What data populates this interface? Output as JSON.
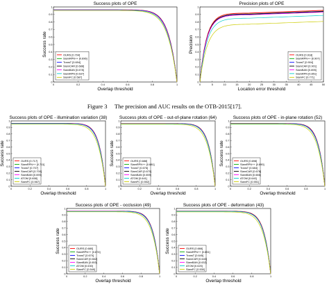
{
  "caption": "Figure 3     The precision and AUC results on the OTB-2015[17].",
  "chart_data": [
    {
      "type": "line",
      "title": "Success plots of OPE",
      "xlabel": "Overlap threshold",
      "ylabel": "Success rate",
      "xlim": [
        0,
        1
      ],
      "ylim": [
        0,
        1
      ],
      "legend_position": "bottom-left",
      "series": [
        {
          "name": "OURS [0.704]",
          "color": "#ff0000",
          "dash": "solid",
          "value": 0.704
        },
        {
          "name": "SiamRPN++ [0.696]",
          "color": "#00aa00",
          "dash": "solid",
          "value": 0.696
        },
        {
          "name": "TransT [0.694]",
          "color": "#0000ff",
          "dash": "solid",
          "value": 0.694
        },
        {
          "name": "SiamCAR [0.688]",
          "color": "#000000",
          "dash": "solid",
          "value": 0.688
        },
        {
          "name": "SiamBAN [0.678]",
          "color": "#ff00ff",
          "dash": "solid",
          "value": 0.678
        },
        {
          "name": "SiamRPN [0.637]",
          "color": "#00cccc",
          "dash": "solid",
          "value": 0.637
        },
        {
          "name": "SiamFC [0.587]",
          "color": "#cccc00",
          "dash": "solid",
          "value": 0.587
        }
      ]
    },
    {
      "type": "line",
      "title": "Precision plots of OPE",
      "xlabel": "Location error threshold",
      "ylabel": "Precision",
      "xlim": [
        0,
        50
      ],
      "ylim": [
        0,
        1
      ],
      "legend_position": "bottom-right",
      "series": [
        {
          "name": "OURS [0.918]",
          "color": "#ff0000",
          "dash": "solid",
          "value": 0.918
        },
        {
          "name": "SiamRPN++ [0.907]",
          "color": "#00aa00",
          "dash": "solid",
          "value": 0.907
        },
        {
          "name": "TransT [0.904]",
          "color": "#0000ff",
          "dash": "solid",
          "value": 0.904
        },
        {
          "name": "SiamCAR [0.901]",
          "color": "#000000",
          "dash": "solid",
          "value": 0.901
        },
        {
          "name": "SiamBAN [0.895]",
          "color": "#ff00ff",
          "dash": "solid",
          "value": 0.895
        },
        {
          "name": "SiamRPN [0.851]",
          "color": "#00cccc",
          "dash": "solid",
          "value": 0.851
        },
        {
          "name": "SiamFC [0.771]",
          "color": "#cccc00",
          "dash": "solid",
          "value": 0.771
        }
      ]
    },
    {
      "type": "line",
      "title": "Success plots of OPE - illumination variation (38)",
      "xlabel": "Overlap threshold",
      "ylabel": "Success rate",
      "xlim": [
        0,
        1
      ],
      "ylim": [
        0,
        1
      ],
      "legend_position": "bottom-left",
      "series": [
        {
          "name": "OURS [0.717]",
          "color": "#ff0000",
          "dash": "solid",
          "value": 0.717
        },
        {
          "name": "SiamRPN++ [0.711]",
          "color": "#00aa00",
          "dash": "solid",
          "value": 0.711
        },
        {
          "name": "TransT [0.707]",
          "color": "#0000ff",
          "dash": "solid",
          "value": 0.707
        },
        {
          "name": "SiamCAR [0.700]",
          "color": "#000000",
          "dash": "solid",
          "value": 0.7
        },
        {
          "name": "SiamBAN [0.690]",
          "color": "#ff00ff",
          "dash": "solid",
          "value": 0.69
        },
        {
          "name": "ATOM [0.658]",
          "color": "#00cccc",
          "dash": "solid",
          "value": 0.658
        },
        {
          "name": "SiamFC [0.567]",
          "color": "#cccc00",
          "dash": "solid",
          "value": 0.567
        }
      ]
    },
    {
      "type": "line",
      "title": "Success plots of OPE - out-of-plane rotation (64)",
      "xlabel": "Overlap threshold",
      "ylabel": "Success rate",
      "xlim": [
        0,
        1
      ],
      "ylim": [
        0,
        1
      ],
      "legend_position": "bottom-left",
      "series": [
        {
          "name": "OURS [0.688]",
          "color": "#ff0000",
          "dash": "solid",
          "value": 0.688
        },
        {
          "name": "SiamRPN++ [0.681]",
          "color": "#00aa00",
          "dash": "solid",
          "value": 0.681
        },
        {
          "name": "TransT [0.676]",
          "color": "#0000ff",
          "dash": "solid",
          "value": 0.676
        },
        {
          "name": "SiamCAR [0.670]",
          "color": "#000000",
          "dash": "solid",
          "value": 0.67
        },
        {
          "name": "SiamBAN [0.659]",
          "color": "#ff00ff",
          "dash": "solid",
          "value": 0.659
        },
        {
          "name": "ATOM [0.641]",
          "color": "#00cccc",
          "dash": "solid",
          "value": 0.641
        },
        {
          "name": "SiamFC [0.552]",
          "color": "#cccc00",
          "dash": "solid",
          "value": 0.552
        }
      ]
    },
    {
      "type": "line",
      "title": "Success plots of OPE - in-plane rotation (52)",
      "xlabel": "Overlap threshold",
      "ylabel": "Success rate",
      "xlim": [
        0,
        1
      ],
      "ylim": [
        0,
        1
      ],
      "legend_position": "bottom-left",
      "series": [
        {
          "name": "OURS [0.698]",
          "color": "#ff0000",
          "dash": "solid",
          "value": 0.698
        },
        {
          "name": "SiamRPN++ [0.690]",
          "color": "#00aa00",
          "dash": "solid",
          "value": 0.69
        },
        {
          "name": "TransT [0.684]",
          "color": "#0000ff",
          "dash": "solid",
          "value": 0.684
        },
        {
          "name": "SiamCAR [0.678]",
          "color": "#000000",
          "dash": "solid",
          "value": 0.678
        },
        {
          "name": "SiamBAN [0.666]",
          "color": "#ff00ff",
          "dash": "solid",
          "value": 0.666
        },
        {
          "name": "ATOM [0.640]",
          "color": "#00cccc",
          "dash": "solid",
          "value": 0.64
        },
        {
          "name": "SiamFC [0.551]",
          "color": "#cccc00",
          "dash": "solid",
          "value": 0.551
        }
      ]
    },
    {
      "type": "line",
      "title": "Success plots of OPE - occlusion (49)",
      "xlabel": "Overlap threshold",
      "ylabel": "Success rate",
      "xlim": [
        0,
        1
      ],
      "ylim": [
        0,
        1
      ],
      "legend_position": "bottom-left",
      "series": [
        {
          "name": "OURS [0.680]",
          "color": "#ff0000",
          "dash": "solid",
          "value": 0.68
        },
        {
          "name": "SiamRPN++ [0.674]",
          "color": "#00aa00",
          "dash": "solid",
          "value": 0.674
        },
        {
          "name": "TransT [0.670]",
          "color": "#0000ff",
          "dash": "solid",
          "value": 0.67
        },
        {
          "name": "SiamCAR [0.662]",
          "color": "#000000",
          "dash": "solid",
          "value": 0.662
        },
        {
          "name": "SiamBAN [0.653]",
          "color": "#ff00ff",
          "dash": "solid",
          "value": 0.653
        },
        {
          "name": "ATOM [0.630]",
          "color": "#00cccc",
          "dash": "solid",
          "value": 0.63
        },
        {
          "name": "SiamFC [0.549]",
          "color": "#cccc00",
          "dash": "solid",
          "value": 0.549
        }
      ]
    },
    {
      "type": "line",
      "title": "Success plots of OPE - deformation (43)",
      "xlabel": "Overlap threshold",
      "ylabel": "Success rate",
      "xlim": [
        0,
        1
      ],
      "ylim": [
        0,
        1
      ],
      "legend_position": "bottom-left",
      "series": [
        {
          "name": "OURS [0.666]",
          "color": "#ff0000",
          "dash": "solid",
          "value": 0.666
        },
        {
          "name": "SiamRPN++ [0.651]",
          "color": "#00aa00",
          "dash": "solid",
          "value": 0.651
        },
        {
          "name": "TransT [0.645]",
          "color": "#0000ff",
          "dash": "solid",
          "value": 0.645
        },
        {
          "name": "SiamCAR [0.640]",
          "color": "#000000",
          "dash": "solid",
          "value": 0.64
        },
        {
          "name": "SiamBAN [0.632]",
          "color": "#ff00ff",
          "dash": "solid",
          "value": 0.632
        },
        {
          "name": "ATOM [0.620]",
          "color": "#00cccc",
          "dash": "solid",
          "value": 0.62
        },
        {
          "name": "SiamFC [0.530]",
          "color": "#cccc00",
          "dash": "solid",
          "value": 0.53
        }
      ]
    }
  ]
}
